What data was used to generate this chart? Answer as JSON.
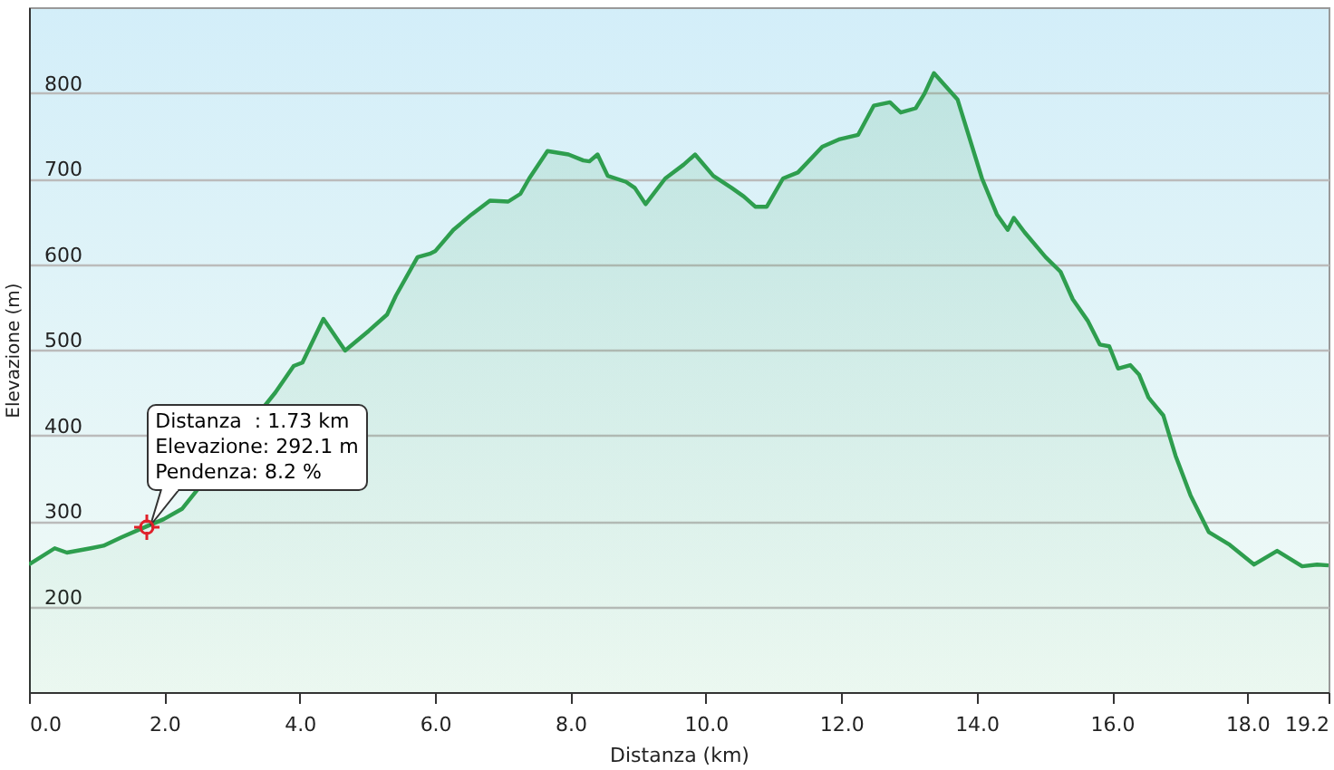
{
  "chart_data": {
    "type": "area",
    "xlabel": "Distanza  (km)",
    "ylabel": "Elevazione (m)",
    "x": [
      0,
      0.38,
      0.56,
      0.91,
      1.1,
      1.37,
      1.72,
      1.99,
      2.26,
      3.64,
      3.91,
      4.04,
      4.35,
      4.67,
      5.02,
      5.29,
      5.42,
      5.74,
      5.92,
      6.0,
      6.27,
      6.54,
      6.81,
      7.08,
      7.26,
      7.39,
      7.66,
      7.97,
      8.19,
      8.28,
      8.4,
      8.55,
      8.82,
      8.95,
      9.11,
      9.4,
      9.67,
      9.84,
      10.11,
      10.38,
      10.56,
      10.73,
      10.9,
      11.14,
      11.36,
      11.72,
      11.98,
      12.25,
      12.48,
      12.72,
      12.88,
      13.1,
      13.23,
      13.37,
      13.72,
      14.08,
      14.3,
      14.46,
      14.55,
      14.71,
      15.02,
      15.24,
      15.42,
      15.64,
      15.82,
      15.96,
      16.09,
      16.27,
      16.4,
      16.54,
      16.76,
      16.94,
      17.16,
      17.43,
      17.74,
      18.1,
      18.44,
      18.81,
      19.03,
      19.2
    ],
    "series": [
      {
        "color": "#2e9e4e",
        "values": [
          249,
          268,
          263,
          268,
          271,
          281,
          293,
          302,
          314,
          450,
          481,
          485,
          536,
          499,
          522,
          541,
          563,
          608,
          612,
          615,
          640,
          658,
          674,
          673,
          682,
          700,
          732,
          728,
          721,
          720,
          728,
          703,
          696,
          689,
          670,
          700,
          716,
          728,
          703,
          689,
          679,
          667,
          667,
          700,
          707,
          737,
          746,
          751,
          785,
          789,
          777,
          782,
          799,
          823,
          792,
          700,
          658,
          640,
          654,
          637,
          608,
          591,
          559,
          534,
          506,
          504,
          478,
          482,
          471,
          444,
          423,
          376,
          330,
          287,
          272,
          249,
          265,
          247,
          249,
          248
        ]
      }
    ],
    "xlim": [
      0,
      19.2
    ],
    "xticks": [
      {
        "value": 0,
        "label": "0.0"
      },
      {
        "value": 2,
        "label": "2.0"
      },
      {
        "value": 4,
        "label": "4.0"
      },
      {
        "value": 6,
        "label": "6.0"
      },
      {
        "value": 8,
        "label": "8.0"
      },
      {
        "value": 10,
        "label": "10.0"
      },
      {
        "value": 12,
        "label": "12.0"
      },
      {
        "value": 14,
        "label": "14.0"
      },
      {
        "value": 16,
        "label": "16.0"
      },
      {
        "value": 18,
        "label": "18.0"
      },
      {
        "value": 19.2,
        "label": "19.2"
      }
    ],
    "ylim": [
      100,
      900
    ],
    "yticks": [
      200,
      300,
      400,
      500,
      600,
      700,
      800
    ],
    "grid": "y",
    "annotations": [
      {
        "text": "Distanza  : 1.73 km\nElevazione: 292.1 m\nPendenza: 8.2 %",
        "x": 1.73,
        "y": 292.1
      }
    ]
  }
}
